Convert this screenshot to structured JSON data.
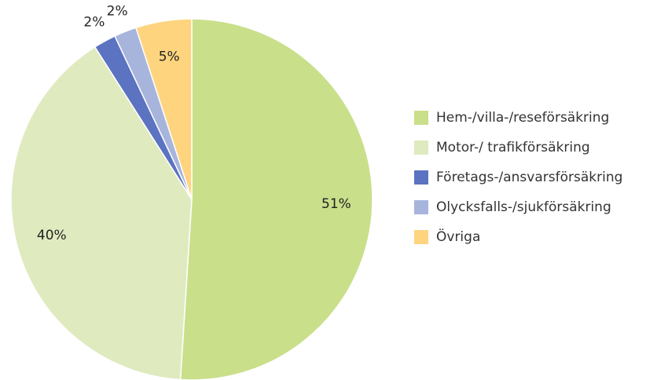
{
  "chart_data": {
    "type": "pie",
    "categories": [
      "Hem-/villa-/reseförsäkring",
      "Motor-/ trafikförsäkring",
      "Företags-/ansvarsförsäkring",
      "Olycksfalls-/sjukförsäkring",
      "Övriga"
    ],
    "values": [
      51,
      40,
      2,
      2,
      5
    ],
    "value_labels": [
      "51%",
      "40%",
      "2%",
      "2%",
      "5%"
    ],
    "colors": [
      "#c9df8a",
      "#dfeabf",
      "#5b73c0",
      "#a7b4dc",
      "#ffd47f"
    ],
    "legend": "right"
  }
}
